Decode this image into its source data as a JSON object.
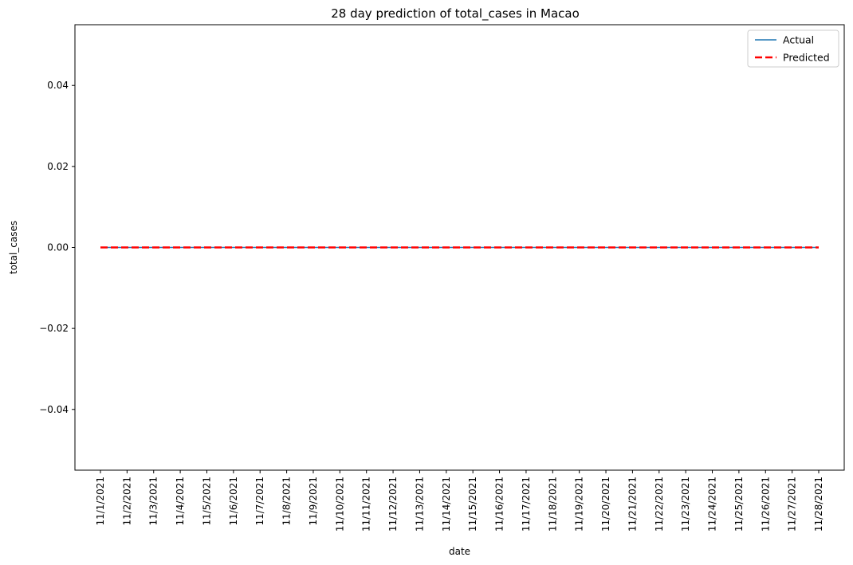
{
  "chart_data": {
    "type": "line",
    "title": "28 day prediction of total_cases in Macao",
    "xlabel": "date",
    "ylabel": "total_cases",
    "x": [
      "11/1/2021",
      "11/2/2021",
      "11/3/2021",
      "11/4/2021",
      "11/5/2021",
      "11/6/2021",
      "11/7/2021",
      "11/8/2021",
      "11/9/2021",
      "11/10/2021",
      "11/11/2021",
      "11/12/2021",
      "11/13/2021",
      "11/14/2021",
      "11/15/2021",
      "11/16/2021",
      "11/17/2021",
      "11/18/2021",
      "11/19/2021",
      "11/20/2021",
      "11/21/2021",
      "11/22/2021",
      "11/23/2021",
      "11/24/2021",
      "11/25/2021",
      "11/26/2021",
      "11/27/2021",
      "11/28/2021"
    ],
    "ylim": [
      -0.055,
      0.055
    ],
    "yticks": [
      -0.04,
      -0.02,
      0.0,
      0.02,
      0.04
    ],
    "ytick_labels": [
      "−0.04",
      "−0.02",
      "0.00",
      "0.02",
      "0.04"
    ],
    "series": [
      {
        "name": "Actual",
        "color": "#1f77b4",
        "style": "solid",
        "values": [
          0,
          0,
          0,
          0,
          0,
          0,
          0,
          0,
          0,
          0,
          0,
          0,
          0,
          0,
          0,
          0,
          0,
          0,
          0,
          0,
          0,
          0,
          0,
          0,
          0,
          0,
          0,
          0
        ]
      },
      {
        "name": "Predicted",
        "color": "#ff0000",
        "style": "dashed",
        "values": [
          0,
          0,
          0,
          0,
          0,
          0,
          0,
          0,
          0,
          0,
          0,
          0,
          0,
          0,
          0,
          0,
          0,
          0,
          0,
          0,
          0,
          0,
          0,
          0,
          0,
          0,
          0,
          0
        ]
      }
    ],
    "legend_position": "top-right",
    "grid": false
  }
}
